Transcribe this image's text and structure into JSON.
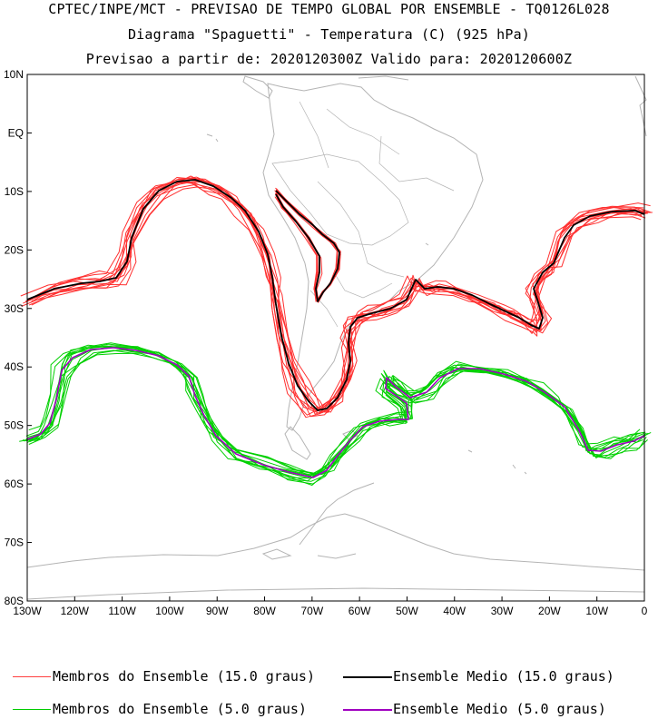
{
  "header": {
    "line1": "CPTEC/INPE/MCT - PREVISAO DE TEMPO GLOBAL POR ENSEMBLE - TQ0126L028",
    "line2": "Diagrama \"Spaguetti\" - Temperatura (C) (925 hPa)",
    "line3": "Previsao a partir de: 2020120300Z  Valido para: 2020120600Z"
  },
  "map": {
    "lat_labels": [
      "10N",
      "EQ",
      "10S",
      "20S",
      "30S",
      "40S",
      "50S",
      "60S",
      "70S",
      "80S"
    ],
    "lon_labels": [
      "130W",
      "120W",
      "110W",
      "100W",
      "90W",
      "80W",
      "70W",
      "60W",
      "50W",
      "40W",
      "30W",
      "20W",
      "10W",
      "0"
    ],
    "extent": {
      "lon_min": -130,
      "lon_max": 0,
      "lat_min": -80,
      "lat_max": 10
    },
    "coast_color": "#b4b4b4"
  },
  "contours": {
    "iso15": {
      "label": "15.0 graus",
      "member_color": "#ff3030",
      "mean_color": "#000000"
    },
    "iso5": {
      "label": "5.0 graus",
      "member_color": "#00d000",
      "mean_color": "#a000c0"
    }
  },
  "legend": {
    "members15": "Membros do Ensemble (15.0 graus)",
    "mean15": "Ensemble Medio (15.0 graus)",
    "members5": "Membros do Ensemble (5.0 graus)",
    "mean5": "Ensemble Medio (5.0 graus)",
    "colors": {
      "members15": "#ff4040",
      "mean15": "#000000",
      "members5": "#00cc00",
      "mean5": "#a000c0"
    }
  }
}
